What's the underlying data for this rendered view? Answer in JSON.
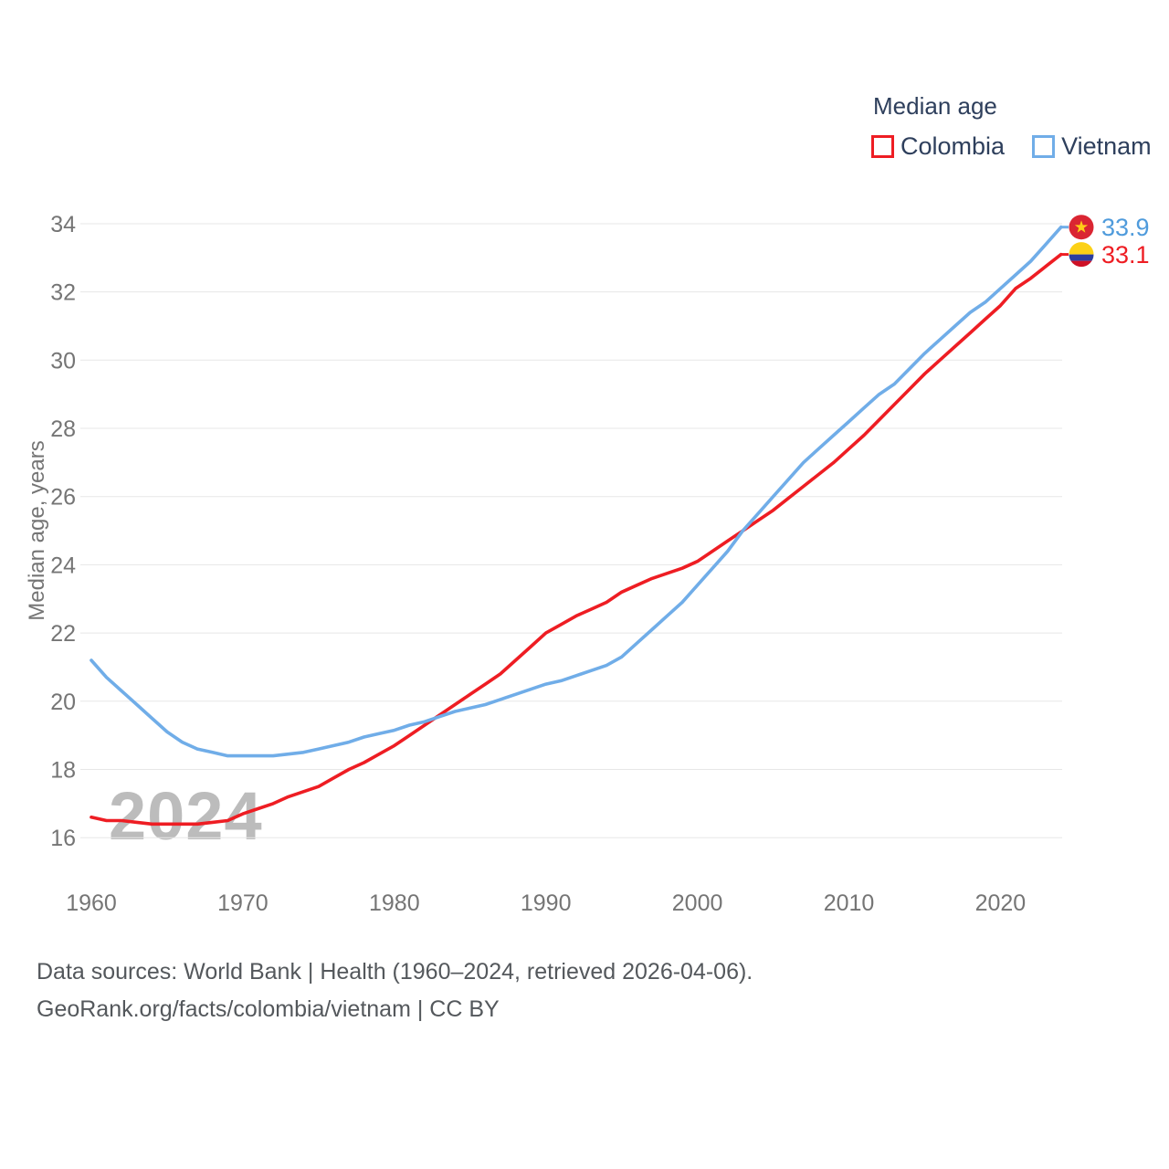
{
  "legend": {
    "title": "Median age",
    "items": [
      {
        "label": "Colombia",
        "color": "#ee1d23"
      },
      {
        "label": "Vietnam",
        "color": "#70ade8"
      }
    ]
  },
  "watermark": "2024",
  "y_axis_title": "Median age, years",
  "footer": {
    "line1": "Data sources: World Bank | Health (1960–2024, retrieved 2026-04-06).",
    "line2": "GeoRank.org/facts/colombia/vietnam | CC BY"
  },
  "end_labels": [
    {
      "series": "Vietnam",
      "value": "33.9",
      "flag": "vietnam-flag",
      "color": "#4f9bdc"
    },
    {
      "series": "Colombia",
      "value": "33.1",
      "flag": "colombia-flag",
      "color": "#ee1d23"
    }
  ],
  "flag_colors": {
    "vietnam_red": "#da2532",
    "vietnam_star_yellow": "#ffcd17",
    "colombia_yellow": "#fcd116",
    "colombia_blue": "#2c3e9e",
    "colombia_red": "#ce1126"
  },
  "chart_data": {
    "type": "line",
    "title": "Median age",
    "xlabel": "",
    "ylabel": "Median age, years",
    "x_ticks": [
      1960,
      1970,
      1980,
      1990,
      2000,
      2010,
      2020
    ],
    "y_ticks": [
      16,
      18,
      20,
      22,
      24,
      26,
      28,
      30,
      32,
      34
    ],
    "ylim": [
      16,
      34
    ],
    "xlim": [
      1960,
      2024
    ],
    "grid": "horizontal",
    "legend_position": "top-right",
    "years": [
      1960,
      1961,
      1962,
      1963,
      1964,
      1965,
      1966,
      1967,
      1968,
      1969,
      1970,
      1971,
      1972,
      1973,
      1974,
      1975,
      1976,
      1977,
      1978,
      1979,
      1980,
      1981,
      1982,
      1983,
      1984,
      1985,
      1986,
      1987,
      1988,
      1989,
      1990,
      1991,
      1992,
      1993,
      1994,
      1995,
      1996,
      1997,
      1998,
      1999,
      2000,
      2001,
      2002,
      2003,
      2004,
      2005,
      2006,
      2007,
      2008,
      2009,
      2010,
      2011,
      2012,
      2013,
      2014,
      2015,
      2016,
      2017,
      2018,
      2019,
      2020,
      2021,
      2022,
      2023,
      2024
    ],
    "series": [
      {
        "name": "Colombia",
        "color": "#ee1d23",
        "values": [
          16.6,
          16.5,
          16.5,
          16.45,
          16.4,
          16.4,
          16.4,
          16.4,
          16.45,
          16.5,
          16.7,
          16.85,
          17.0,
          17.2,
          17.35,
          17.5,
          17.75,
          18.0,
          18.2,
          18.45,
          18.7,
          19.0,
          19.3,
          19.6,
          19.9,
          20.2,
          20.5,
          20.8,
          21.2,
          21.6,
          22.0,
          22.25,
          22.5,
          22.7,
          22.9,
          23.2,
          23.4,
          23.6,
          23.75,
          23.9,
          24.1,
          24.4,
          24.7,
          25.0,
          25.3,
          25.6,
          25.95,
          26.3,
          26.65,
          27.0,
          27.4,
          27.8,
          28.25,
          28.7,
          29.15,
          29.6,
          30.0,
          30.4,
          30.8,
          31.2,
          31.6,
          32.1,
          32.4,
          32.75,
          33.1
        ]
      },
      {
        "name": "Vietnam",
        "color": "#70ade8",
        "values": [
          21.2,
          20.7,
          20.3,
          19.9,
          19.5,
          19.1,
          18.8,
          18.6,
          18.5,
          18.4,
          18.4,
          18.4,
          18.4,
          18.45,
          18.5,
          18.6,
          18.7,
          18.8,
          18.95,
          19.05,
          19.15,
          19.3,
          19.4,
          19.55,
          19.7,
          19.8,
          19.9,
          20.05,
          20.2,
          20.35,
          20.5,
          20.6,
          20.75,
          20.9,
          21.05,
          21.3,
          21.7,
          22.1,
          22.5,
          22.9,
          23.4,
          23.9,
          24.4,
          25.0,
          25.5,
          26.0,
          26.5,
          27.0,
          27.4,
          27.8,
          28.2,
          28.6,
          29.0,
          29.3,
          29.75,
          30.2,
          30.6,
          31.0,
          31.4,
          31.7,
          32.1,
          32.5,
          32.9,
          33.4,
          33.9
        ]
      }
    ]
  }
}
